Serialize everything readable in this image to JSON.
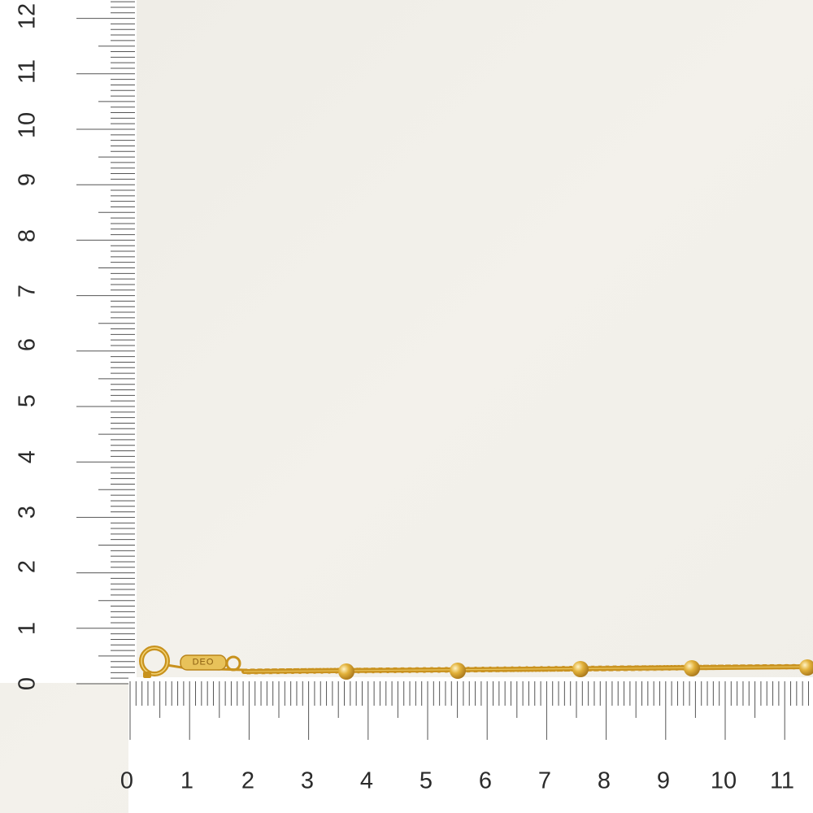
{
  "image": {
    "subject": "gold-chain-bracelet",
    "background_color": "#f2f0ea",
    "ruler_color": "#ffffff",
    "gold_color": "#d9a52a"
  },
  "ruler_vertical": {
    "unit_labels": [
      "0",
      "1",
      "2",
      "3",
      "4",
      "5",
      "6",
      "7",
      "8",
      "9",
      "10",
      "11",
      "12"
    ]
  },
  "ruler_horizontal": {
    "unit_labels": [
      "0",
      "1",
      "2",
      "3",
      "4",
      "5",
      "6",
      "7",
      "8",
      "9",
      "10",
      "11"
    ]
  },
  "clasp": {
    "engraving": "DEO"
  }
}
